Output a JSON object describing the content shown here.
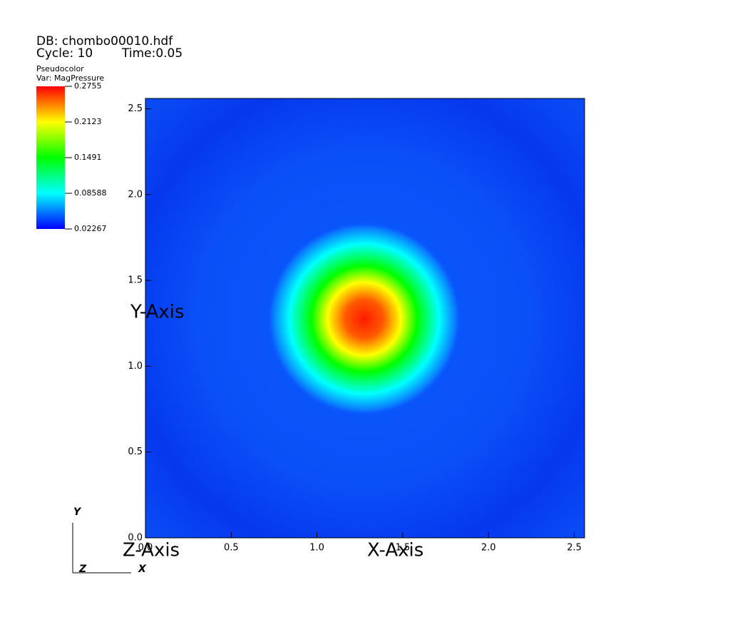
{
  "chart_data": {
    "type": "heatmap",
    "db": "DB: chombo00010.hdf",
    "cycle": "Cycle: 10",
    "time": "Time:0.05",
    "plot_label": "Pseudocolor",
    "variable": "Var: MagPressure",
    "clim": [
      0.02267,
      0.2755
    ],
    "cticks": [
      0.2755,
      0.2123,
      0.1491,
      0.08588,
      0.02267
    ],
    "colormap": [
      "#0000ff",
      "#00ffff",
      "#00ff00",
      "#ffff00",
      "#ff0000"
    ],
    "xlabel": "X-Axis",
    "ylabel": "Y-Axis",
    "zlabel": "Z-Axis",
    "xlim": [
      0,
      2.56
    ],
    "ylim": [
      0,
      2.56
    ],
    "xticks": [
      {
        "value": 0,
        "label": "0.0"
      },
      0.5,
      {
        "value": 1,
        "label": "1.0"
      },
      1.5,
      {
        "value": 2,
        "label": "2.0"
      },
      2.5
    ],
    "yticks": [
      {
        "value": 0,
        "label": "0.0"
      },
      0.5,
      {
        "value": 1,
        "label": "1.0"
      },
      1.5,
      {
        "value": 2,
        "label": "2.0"
      },
      2.5
    ],
    "triad": {
      "y": "Y",
      "z": "Z",
      "x": "X"
    }
  }
}
